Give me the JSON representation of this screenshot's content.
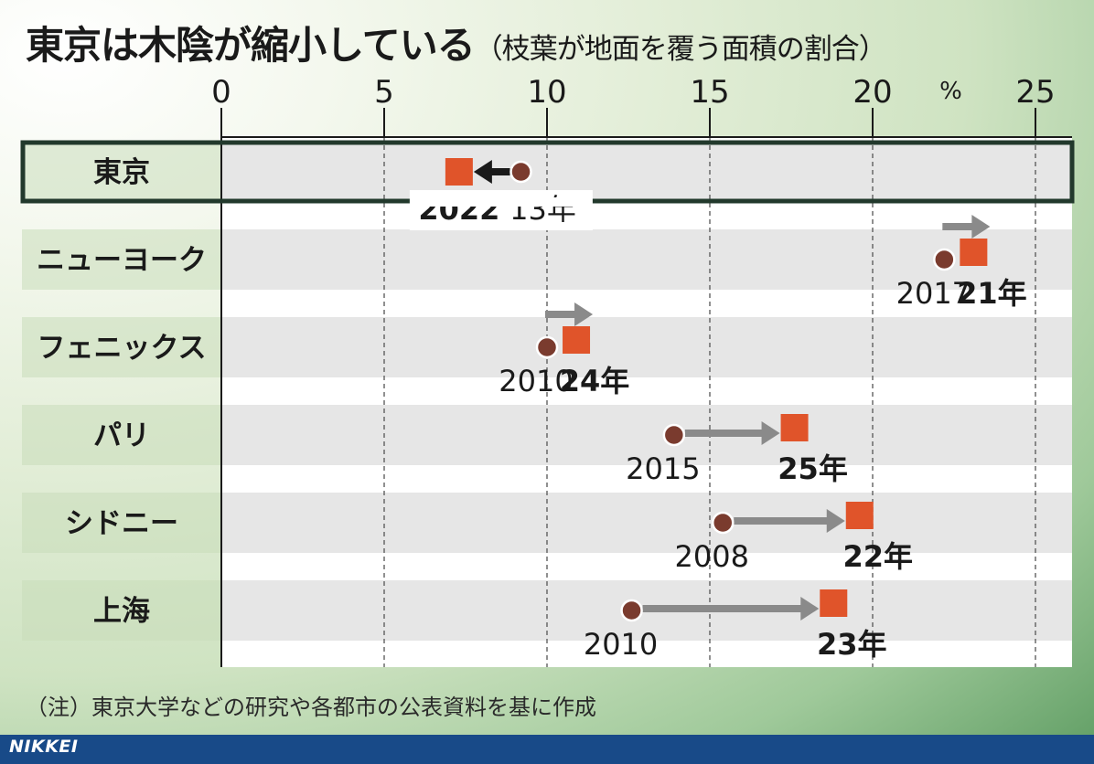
{
  "title": "東京は木陰が縮小している",
  "subtitle": "（枝葉が地面を覆う面積の割合）",
  "note": "（注）東京大学などの研究や各都市の公表資料を基に作成",
  "brand": "NIKKEI",
  "colors": {
    "start_marker": "#7a3b2e",
    "end_marker": "#e0542a",
    "arrow_grow": "#8a8a8a",
    "arrow_shrink": "#1a1a1a",
    "highlight_frame": "#22392c",
    "row_band": "#e6e6e6",
    "footer": "#184a88"
  },
  "chart_data": {
    "type": "dot-arrow",
    "unit": "%",
    "xlim": [
      0,
      25
    ],
    "ticks": [
      0,
      5,
      10,
      15,
      20,
      25
    ],
    "grid": "dashed-vertical",
    "highlight": "東京",
    "series": [
      {
        "name": "東京",
        "start": 9.2,
        "end": 7.3,
        "start_year": "13年",
        "end_year": "2022",
        "direction": "shrink"
      },
      {
        "name": "ニューヨーク",
        "start": 22.2,
        "end": 23.1,
        "start_year": "2017",
        "end_year": "21年",
        "direction": "grow"
      },
      {
        "name": "フェニックス",
        "start": 10.0,
        "end": 10.9,
        "start_year": "2010",
        "end_year": "24年",
        "direction": "grow"
      },
      {
        "name": "パリ",
        "start": 13.9,
        "end": 17.6,
        "start_year": "2015",
        "end_year": "25年",
        "direction": "grow"
      },
      {
        "name": "シドニー",
        "start": 15.4,
        "end": 19.6,
        "start_year": "2008",
        "end_year": "22年",
        "direction": "grow"
      },
      {
        "name": "上海",
        "start": 12.6,
        "end": 18.8,
        "start_year": "2010",
        "end_year": "23年",
        "direction": "grow"
      }
    ]
  }
}
